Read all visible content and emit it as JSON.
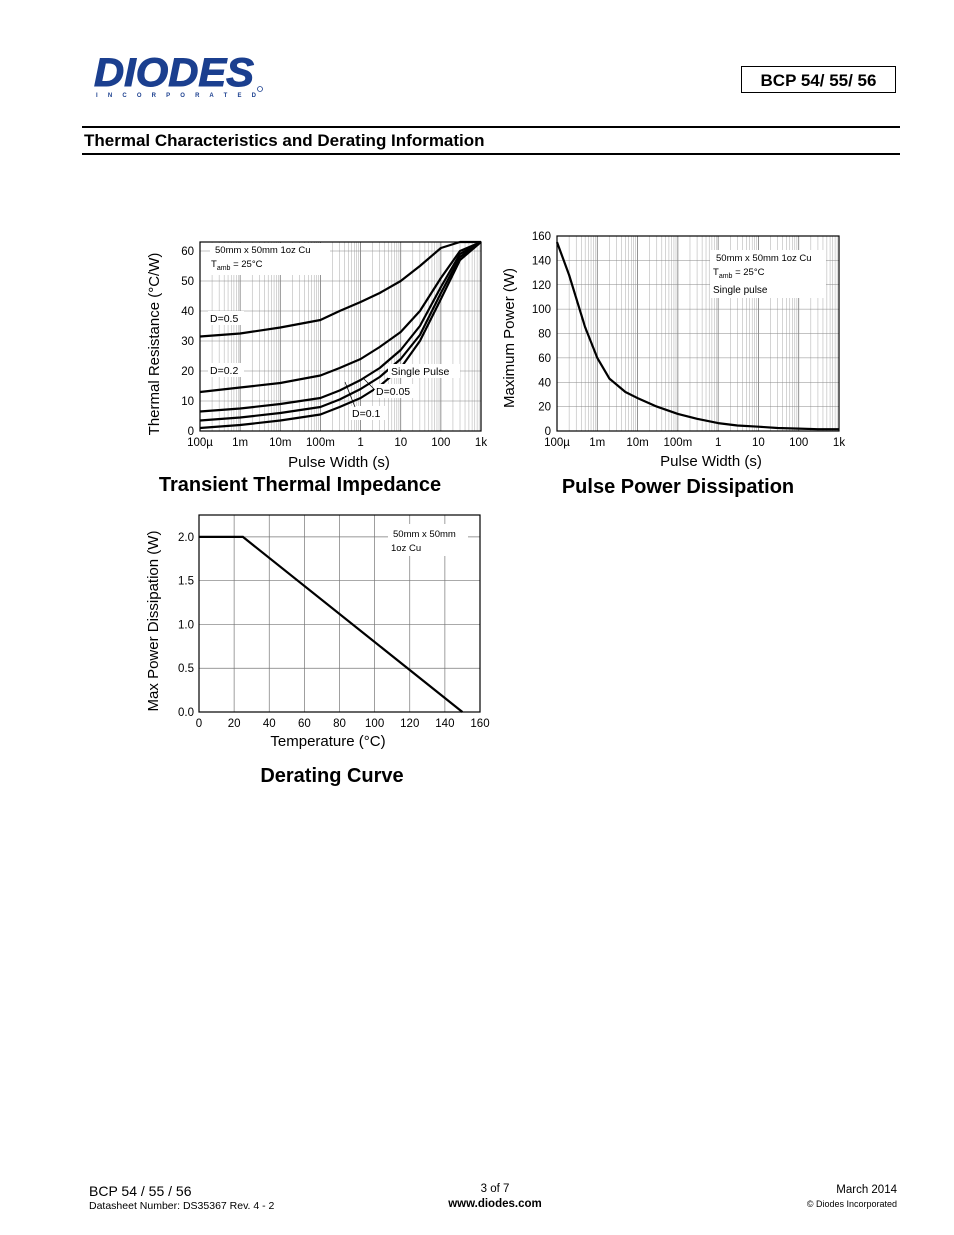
{
  "header": {
    "brand": "DIODES",
    "brand_sub": "I N C O R P O R A T E D",
    "part_number": "BCP 54/ 55/ 56",
    "logo_color": "#1b3f8f"
  },
  "section_title": "Thermal Characteristics and Derating Information",
  "chart_data": [
    {
      "type": "line",
      "title": "Transient Thermal Impedance",
      "xlabel": "Pulse Width (s)",
      "ylabel": "Thermal Resistance (°C/W)",
      "x_scale": "log",
      "x_ticks": [
        "100µ",
        "1m",
        "10m",
        "100m",
        "1",
        "10",
        "100",
        "1k"
      ],
      "y_ticks": [
        "0",
        "10",
        "20",
        "30",
        "40",
        "50",
        "60"
      ],
      "ylim": [
        0,
        63
      ],
      "grid": true,
      "note": [
        "50mm x 50mm 1oz Cu",
        "T",
        "amb",
        " = 25°C"
      ],
      "x": [
        0.0001,
        0.001,
        0.01,
        0.1,
        0.3,
        1,
        3,
        10,
        30,
        100,
        300,
        1000
      ],
      "series": [
        {
          "name": "D=0.5",
          "values": [
            31.5,
            32.5,
            34.5,
            37,
            40,
            43,
            46,
            50,
            55,
            61,
            63,
            63
          ]
        },
        {
          "name": "D=0.2",
          "values": [
            13,
            14.5,
            16,
            18.5,
            21,
            24,
            28,
            33,
            40,
            51,
            60,
            63
          ]
        },
        {
          "name": "D=0.1",
          "values": [
            6.5,
            7.5,
            9,
            11,
            13.5,
            17,
            21,
            27,
            35,
            48,
            59,
            63
          ]
        },
        {
          "name": "D=0.05",
          "values": [
            3.5,
            4.5,
            6,
            8,
            10.5,
            14,
            18,
            24,
            32,
            46,
            58,
            63
          ]
        },
        {
          "name": "Single Pulse",
          "values": [
            1,
            2,
            3.5,
            5.5,
            8,
            11,
            15,
            21,
            30,
            44,
            57,
            63
          ]
        }
      ]
    },
    {
      "type": "line",
      "title": "Pulse Power Dissipation",
      "xlabel": "Pulse Width (s)",
      "ylabel": "Maximum Power (W)",
      "x_scale": "log",
      "x_ticks": [
        "100µ",
        "1m",
        "10m",
        "100m",
        "1",
        "10",
        "100",
        "1k"
      ],
      "y_ticks": [
        "0",
        "20",
        "40",
        "60",
        "80",
        "100",
        "120",
        "140",
        "160"
      ],
      "ylim": [
        0,
        160
      ],
      "grid": true,
      "note": [
        "50mm x 50mm 1oz Cu",
        "T",
        "amb",
        " = 25°C",
        "Single pulse"
      ],
      "series": [
        {
          "name": "Single pulse",
          "x": [
            0.0001,
            0.0002,
            0.0005,
            0.001,
            0.002,
            0.005,
            0.01,
            0.03,
            0.1,
            0.3,
            1,
            3,
            10,
            30,
            100,
            300,
            1000
          ],
          "values": [
            155,
            128,
            85,
            60,
            43,
            32,
            27,
            20,
            14,
            10,
            6.5,
            4.5,
            3.5,
            2.5,
            2,
            1.5,
            1.5
          ]
        }
      ]
    },
    {
      "type": "line",
      "title": "Derating Curve",
      "xlabel": "Temperature (°C)",
      "ylabel": "Max Power Dissipation (W)",
      "x_ticks": [
        "0",
        "20",
        "40",
        "60",
        "80",
        "100",
        "120",
        "140",
        "160"
      ],
      "y_ticks": [
        "0.0",
        "0.5",
        "1.0",
        "1.5",
        "2.0"
      ],
      "xlim": [
        0,
        160
      ],
      "ylim": [
        0,
        2.25
      ],
      "grid": true,
      "note": [
        "50mm x 50mm",
        "1oz Cu"
      ],
      "series": [
        {
          "name": "Derating",
          "x": [
            0,
            25,
            150
          ],
          "values": [
            2.0,
            2.0,
            0.0
          ]
        }
      ]
    }
  ],
  "footer": {
    "part": "BCP 54 / 55 / 56",
    "datasheet": "Datasheet Number: DS35367 Rev. 4 - 2",
    "page": "3 of 7",
    "url": "www.diodes.com",
    "date": "March 2014",
    "copyright": "© Diodes Incorporated"
  }
}
